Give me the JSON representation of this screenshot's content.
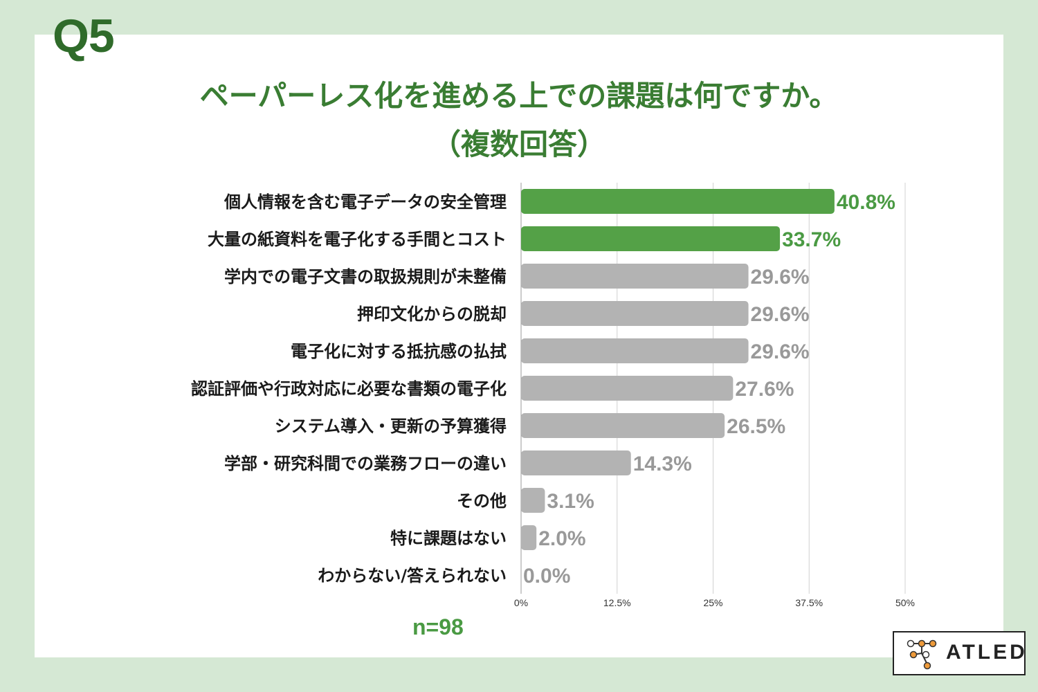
{
  "question_label": "Q5",
  "title_line1": "ペーパーレス化を進める上での課題は何ですか。",
  "title_line2": "（複数回答）",
  "sample_size": "n=98",
  "logo_text": "ATLED",
  "colors": {
    "background": "#d5e8d4",
    "highlight_bar": "#54a147",
    "other_bar": "#b3b3b3",
    "highlight_value": "#4a9a43",
    "other_value": "#999999",
    "title": "#3a7d33",
    "logo_orange": "#ee9a3a"
  },
  "chart_data": {
    "type": "bar",
    "orientation": "horizontal",
    "categories": [
      "個人情報を含む電子データの安全管理",
      "大量の紙資料を電子化する手間とコスト",
      "学内での電子文書の取扱規則が未整備",
      "押印文化からの脱却",
      "電子化に対する抵抗感の払拭",
      "認証評価や行政対応に必要な書類の電子化",
      "システム導入・更新の予算獲得",
      "学部・研究科間での業務フローの違い",
      "その他",
      "特に課題はない",
      "わからない/答えられない"
    ],
    "values": [
      40.8,
      33.7,
      29.6,
      29.6,
      29.6,
      27.6,
      26.5,
      14.3,
      3.1,
      2.0,
      0.0
    ],
    "value_labels": [
      "40.8%",
      "33.7%",
      "29.6%",
      "29.6%",
      "29.6%",
      "27.6%",
      "26.5%",
      "14.3%",
      "3.1%",
      "2.0%",
      "0.0%"
    ],
    "highlighted": [
      true,
      true,
      false,
      false,
      false,
      false,
      false,
      false,
      false,
      false,
      false
    ],
    "xlim": [
      0,
      50
    ],
    "xticks": [
      0,
      12.5,
      25,
      37.5,
      50
    ],
    "xtick_labels": [
      "0%",
      "12.5%",
      "25%",
      "37.5%",
      "50%"
    ],
    "grid": true
  }
}
